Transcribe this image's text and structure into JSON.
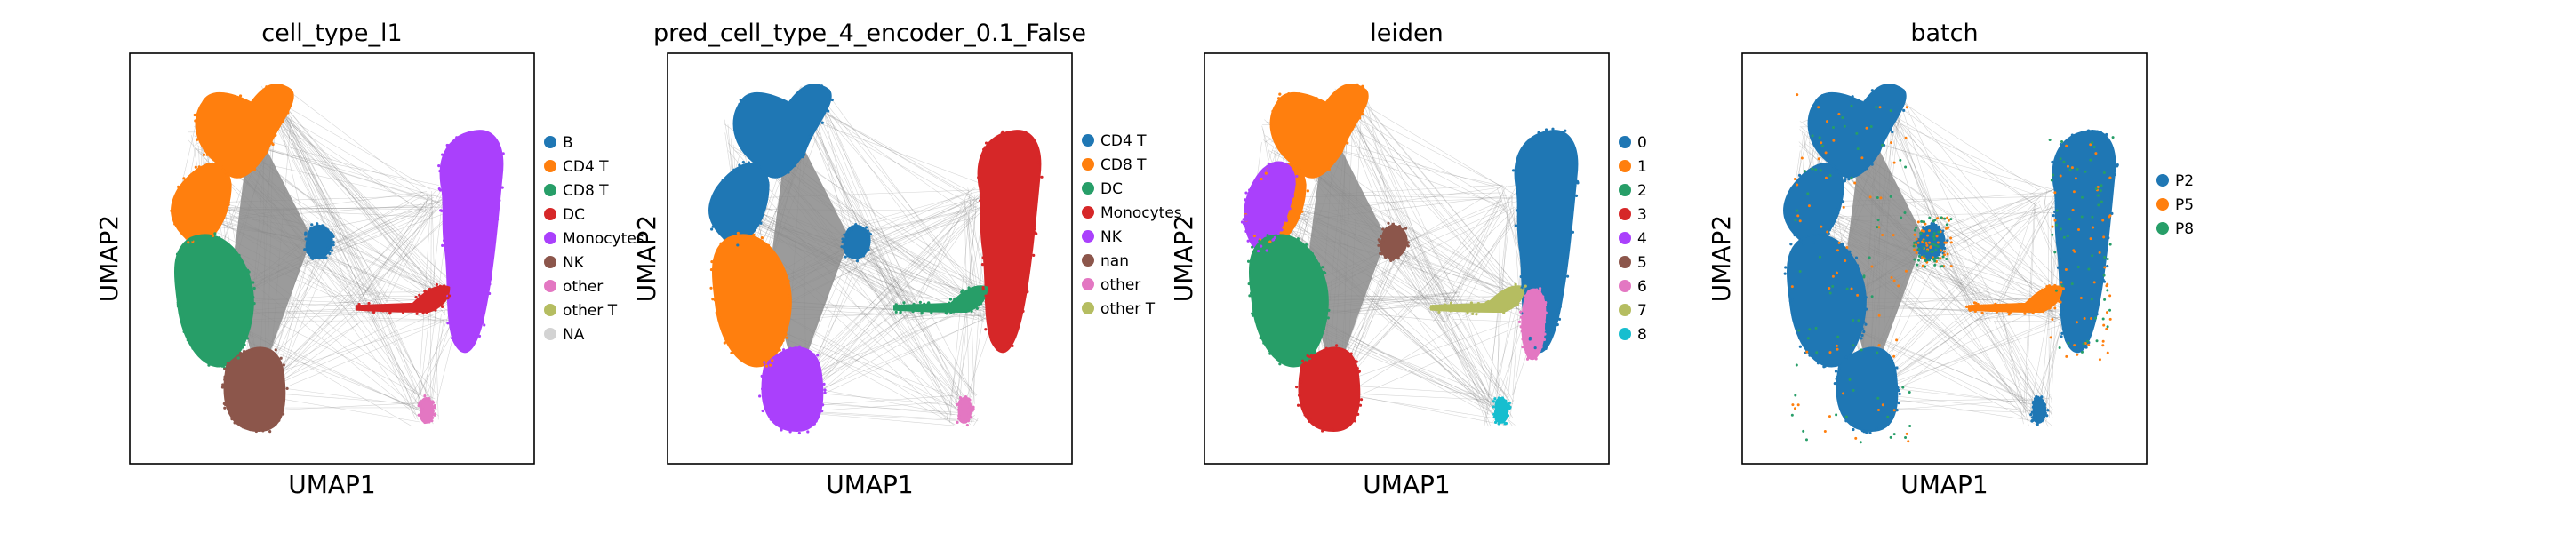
{
  "chart_data": [
    {
      "type": "scatter",
      "title": "cell_type_l1",
      "xlabel": "UMAP1",
      "ylabel": "UMAP2",
      "grid": false,
      "legend_position": "right",
      "categories": [
        {
          "label": "B",
          "color": "#1f77b4"
        },
        {
          "label": "CD4 T",
          "color": "#ff7f0e"
        },
        {
          "label": "CD8 T",
          "color": "#279e68"
        },
        {
          "label": "DC",
          "color": "#d62728"
        },
        {
          "label": "Monocytes",
          "color": "#aa40fc"
        },
        {
          "label": "NK",
          "color": "#8c564b"
        },
        {
          "label": "other",
          "color": "#e377c2"
        },
        {
          "label": "other T",
          "color": "#b5bd61"
        },
        {
          "label": "NA",
          "color": "#d3d3d3"
        }
      ],
      "regions": [
        {
          "category": "CD4 T",
          "shape": "left-mass-top"
        },
        {
          "category": "CD8 T",
          "shape": "left-mass-lower"
        },
        {
          "category": "NK",
          "shape": "bottom-blob"
        },
        {
          "category": "B",
          "shape": "center-blob"
        },
        {
          "category": "Monocytes",
          "shape": "right-mass"
        },
        {
          "category": "DC",
          "shape": "bridge"
        },
        {
          "category": "other",
          "shape": "bottom-right-tip"
        }
      ]
    },
    {
      "type": "scatter",
      "title": "pred_cell_type_4_encoder_0.1_False",
      "xlabel": "UMAP1",
      "ylabel": "UMAP2",
      "grid": false,
      "legend_position": "right",
      "categories": [
        {
          "label": "CD4 T",
          "color": "#1f77b4"
        },
        {
          "label": "CD8 T",
          "color": "#ff7f0e"
        },
        {
          "label": "DC",
          "color": "#279e68"
        },
        {
          "label": "Monocytes",
          "color": "#d62728"
        },
        {
          "label": "NK",
          "color": "#aa40fc"
        },
        {
          "label": "nan",
          "color": "#8c564b"
        },
        {
          "label": "other",
          "color": "#e377c2"
        },
        {
          "label": "other T",
          "color": "#b5bd61"
        }
      ],
      "regions": [
        {
          "category": "CD4 T",
          "shape": "left-mass-top"
        },
        {
          "category": "CD8 T",
          "shape": "left-mass-lower"
        },
        {
          "category": "NK",
          "shape": "bottom-blob"
        },
        {
          "category": "CD4 T",
          "shape": "center-blob"
        },
        {
          "category": "Monocytes",
          "shape": "right-mass"
        },
        {
          "category": "DC",
          "shape": "bridge"
        },
        {
          "category": "other",
          "shape": "bottom-right-tip"
        }
      ]
    },
    {
      "type": "scatter",
      "title": "leiden",
      "xlabel": "UMAP1",
      "ylabel": "UMAP2",
      "grid": false,
      "legend_position": "right",
      "categories": [
        {
          "label": "0",
          "color": "#1f77b4"
        },
        {
          "label": "1",
          "color": "#ff7f0e"
        },
        {
          "label": "2",
          "color": "#279e68"
        },
        {
          "label": "3",
          "color": "#d62728"
        },
        {
          "label": "4",
          "color": "#aa40fc"
        },
        {
          "label": "5",
          "color": "#8c564b"
        },
        {
          "label": "6",
          "color": "#e377c2"
        },
        {
          "label": "7",
          "color": "#b5bd61"
        },
        {
          "label": "8",
          "color": "#17becf"
        }
      ],
      "regions": [
        {
          "category": "1",
          "shape": "left-mass-top"
        },
        {
          "category": "4",
          "shape": "left-mass-mid"
        },
        {
          "category": "2",
          "shape": "left-mass-lower"
        },
        {
          "category": "3",
          "shape": "bottom-blob"
        },
        {
          "category": "5",
          "shape": "center-blob"
        },
        {
          "category": "0",
          "shape": "right-mass"
        },
        {
          "category": "6",
          "shape": "right-lower-tail"
        },
        {
          "category": "7",
          "shape": "bridge"
        },
        {
          "category": "8",
          "shape": "bottom-right-tip"
        }
      ]
    },
    {
      "type": "scatter",
      "title": "batch",
      "xlabel": "UMAP1",
      "ylabel": "UMAP2",
      "grid": false,
      "legend_position": "right",
      "categories": [
        {
          "label": "P2",
          "color": "#1f77b4"
        },
        {
          "label": "P5",
          "color": "#ff7f0e"
        },
        {
          "label": "P8",
          "color": "#279e68"
        }
      ],
      "regions": [
        {
          "category": "P2",
          "shape": "left-mass-top"
        },
        {
          "category": "P2",
          "shape": "left-mass-lower"
        },
        {
          "category": "P2",
          "shape": "bottom-blob"
        },
        {
          "category": "P2",
          "shape": "center-blob"
        },
        {
          "category": "P2",
          "shape": "right-mass"
        },
        {
          "category": "P5",
          "shape": "bridge"
        },
        {
          "category": "P2",
          "shape": "bottom-right-tip"
        }
      ],
      "speckle": [
        "P5",
        "P8"
      ]
    }
  ]
}
